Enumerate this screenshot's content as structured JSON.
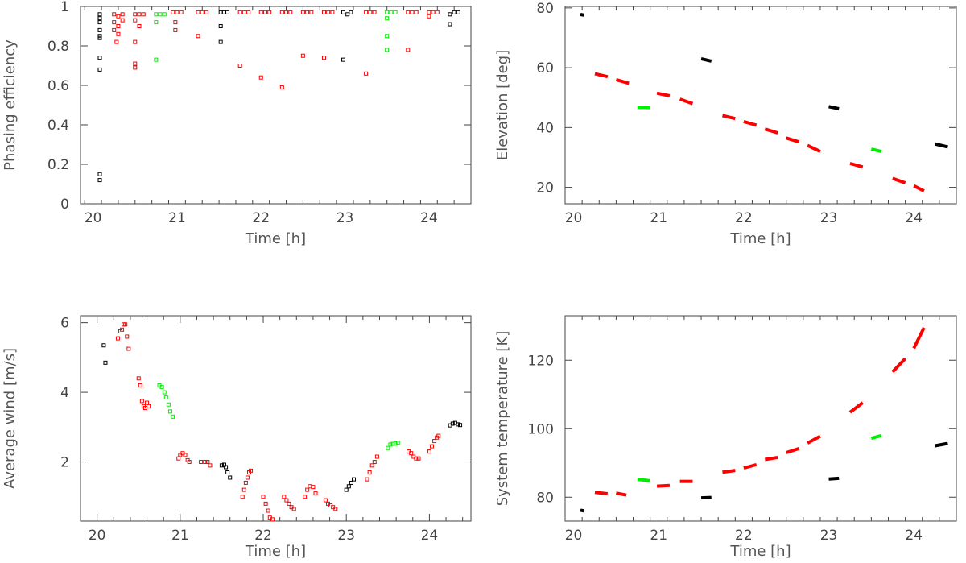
{
  "colors": {
    "red": "#ff0000",
    "green": "#00ee00",
    "black": "#000000",
    "frame": "#444444"
  },
  "chart_data": [
    {
      "type": "scatter",
      "title": "",
      "xlabel": "Time [h]",
      "ylabel": "Phasing efficiency",
      "xlim": [
        19.85,
        24.5
      ],
      "ylim": [
        0,
        1
      ],
      "xticks": [
        20,
        21,
        22,
        23,
        24
      ],
      "yticks": [
        0,
        0.2,
        0.4,
        0.6,
        0.8,
        1
      ],
      "ytick_labels": [
        "0",
        "0.2",
        "0.4",
        "0.6",
        "0.8",
        "1"
      ],
      "marker": "open-square",
      "series": [
        {
          "color": "black",
          "points": [
            [
              20.08,
              0.96
            ],
            [
              20.08,
              0.94
            ],
            [
              20.08,
              0.92
            ],
            [
              20.08,
              0.88
            ],
            [
              20.08,
              0.85
            ],
            [
              20.08,
              0.84
            ],
            [
              20.08,
              0.74
            ],
            [
              20.08,
              0.68
            ],
            [
              20.08,
              0.15
            ],
            [
              20.08,
              0.12
            ],
            [
              21.52,
              0.97
            ],
            [
              21.56,
              0.97
            ],
            [
              21.6,
              0.97
            ],
            [
              21.52,
              0.9
            ],
            [
              21.52,
              0.82
            ],
            [
              22.98,
              0.97
            ],
            [
              23.03,
              0.96
            ],
            [
              23.07,
              0.97
            ],
            [
              22.98,
              0.73
            ],
            [
              24.25,
              0.96
            ],
            [
              24.3,
              0.97
            ],
            [
              24.35,
              0.97
            ],
            [
              24.25,
              0.91
            ]
          ]
        },
        {
          "color": "green",
          "points": [
            [
              20.75,
              0.96
            ],
            [
              20.8,
              0.96
            ],
            [
              20.85,
              0.96
            ],
            [
              20.75,
              0.92
            ],
            [
              20.75,
              0.73
            ],
            [
              23.5,
              0.97
            ],
            [
              23.55,
              0.97
            ],
            [
              23.6,
              0.97
            ],
            [
              23.5,
              0.94
            ],
            [
              23.5,
              0.85
            ],
            [
              23.5,
              0.78
            ]
          ]
        },
        {
          "color": "red",
          "points": [
            [
              20.25,
              0.96
            ],
            [
              20.3,
              0.95
            ],
            [
              20.35,
              0.96
            ],
            [
              20.25,
              0.92
            ],
            [
              20.3,
              0.9
            ],
            [
              20.25,
              0.88
            ],
            [
              20.3,
              0.86
            ],
            [
              20.28,
              0.82
            ],
            [
              20.35,
              0.93
            ],
            [
              20.5,
              0.96
            ],
            [
              20.55,
              0.96
            ],
            [
              20.6,
              0.96
            ],
            [
              20.5,
              0.93
            ],
            [
              20.55,
              0.9
            ],
            [
              20.5,
              0.82
            ],
            [
              20.5,
              0.71
            ],
            [
              20.5,
              0.69
            ],
            [
              20.95,
              0.97
            ],
            [
              21.0,
              0.97
            ],
            [
              21.05,
              0.97
            ],
            [
              20.98,
              0.92
            ],
            [
              20.98,
              0.88
            ],
            [
              21.25,
              0.97
            ],
            [
              21.3,
              0.97
            ],
            [
              21.35,
              0.97
            ],
            [
              21.25,
              0.85
            ],
            [
              21.75,
              0.97
            ],
            [
              21.8,
              0.97
            ],
            [
              21.85,
              0.97
            ],
            [
              21.75,
              0.7
            ],
            [
              22.0,
              0.97
            ],
            [
              22.05,
              0.97
            ],
            [
              22.1,
              0.97
            ],
            [
              22.0,
              0.64
            ],
            [
              22.25,
              0.97
            ],
            [
              22.3,
              0.97
            ],
            [
              22.35,
              0.97
            ],
            [
              22.25,
              0.59
            ],
            [
              22.5,
              0.97
            ],
            [
              22.55,
              0.97
            ],
            [
              22.6,
              0.97
            ],
            [
              22.5,
              0.75
            ],
            [
              22.75,
              0.97
            ],
            [
              22.8,
              0.97
            ],
            [
              22.85,
              0.97
            ],
            [
              22.75,
              0.74
            ],
            [
              23.25,
              0.97
            ],
            [
              23.3,
              0.97
            ],
            [
              23.35,
              0.97
            ],
            [
              23.25,
              0.66
            ],
            [
              23.75,
              0.97
            ],
            [
              23.8,
              0.97
            ],
            [
              23.85,
              0.97
            ],
            [
              23.75,
              0.78
            ],
            [
              24.0,
              0.97
            ],
            [
              24.05,
              0.97
            ],
            [
              24.1,
              0.97
            ],
            [
              24.0,
              0.95
            ]
          ]
        }
      ]
    },
    {
      "type": "scatter",
      "title": "",
      "xlabel": "Time [h]",
      "ylabel": "Elevation [deg]",
      "xlim": [
        19.9,
        24.5
      ],
      "ylim": [
        14.5,
        80.5
      ],
      "xticks": [
        20,
        21,
        22,
        23,
        24
      ],
      "yticks": [
        20,
        40,
        60,
        80
      ],
      "ytick_labels": [
        "20",
        "40",
        "60",
        "80"
      ],
      "marker": "dash",
      "series": [
        {
          "color": "black",
          "segments": [
            [
              20.08,
              77.8,
              20.12,
              77.6
            ],
            [
              21.5,
              63.0,
              21.62,
              62.2
            ],
            [
              23.0,
              47.0,
              23.12,
              46.3
            ],
            [
              24.25,
              34.5,
              24.4,
              33.5
            ]
          ]
        },
        {
          "color": "green",
          "segments": [
            [
              20.75,
              46.8,
              20.9,
              46.7
            ],
            [
              23.5,
              32.8,
              23.62,
              32.0
            ]
          ]
        },
        {
          "color": "red",
          "segments": [
            [
              20.25,
              58.0,
              20.4,
              57.0
            ],
            [
              20.5,
              56.0,
              20.65,
              54.8
            ],
            [
              20.98,
              51.5,
              21.13,
              50.6
            ],
            [
              21.25,
              49.5,
              21.4,
              48.0
            ],
            [
              21.75,
              44.0,
              21.9,
              43.0
            ],
            [
              22.0,
              42.0,
              22.15,
              40.8
            ],
            [
              22.25,
              39.5,
              22.4,
              38.2
            ],
            [
              22.5,
              36.5,
              22.65,
              35.2
            ],
            [
              22.75,
              34.0,
              22.9,
              32.0
            ],
            [
              23.25,
              28.0,
              23.4,
              26.8
            ],
            [
              23.75,
              23.0,
              23.9,
              21.5
            ],
            [
              24.0,
              20.5,
              24.12,
              18.8
            ]
          ]
        }
      ]
    },
    {
      "type": "scatter",
      "title": "",
      "xlabel": "Time [h]",
      "ylabel": "Average wind [m/s]",
      "xlim": [
        19.8,
        24.5
      ],
      "ylim": [
        0.3,
        6.2
      ],
      "xticks": [
        20,
        21,
        22,
        23,
        24
      ],
      "yticks": [
        2,
        4,
        6
      ],
      "ytick_labels": [
        "2",
        "4",
        "6"
      ],
      "marker": "open-square",
      "series": [
        {
          "color": "black",
          "points": [
            [
              20.08,
              5.35
            ],
            [
              20.1,
              4.85
            ],
            [
              21.5,
              1.9
            ],
            [
              21.53,
              1.92
            ],
            [
              21.55,
              1.85
            ],
            [
              21.57,
              1.7
            ],
            [
              21.6,
              1.55
            ],
            [
              23.0,
              1.2
            ],
            [
              23.03,
              1.3
            ],
            [
              23.06,
              1.4
            ],
            [
              23.09,
              1.5
            ],
            [
              24.25,
              3.05
            ],
            [
              24.28,
              3.1
            ],
            [
              24.31,
              3.12
            ],
            [
              24.34,
              3.08
            ],
            [
              24.37,
              3.06
            ]
          ]
        },
        {
          "color": "green",
          "points": [
            [
              20.75,
              4.2
            ],
            [
              20.78,
              4.15
            ],
            [
              20.81,
              4.0
            ],
            [
              20.83,
              3.85
            ],
            [
              20.86,
              3.65
            ],
            [
              20.88,
              3.45
            ],
            [
              20.91,
              3.3
            ],
            [
              23.5,
              2.4
            ],
            [
              23.53,
              2.5
            ],
            [
              23.56,
              2.52
            ],
            [
              23.59,
              2.53
            ],
            [
              23.62,
              2.55
            ]
          ]
        },
        {
          "color": "red",
          "points": [
            [
              20.25,
              5.55
            ],
            [
              20.28,
              5.75
            ],
            [
              20.3,
              5.8
            ],
            [
              20.32,
              5.95
            ],
            [
              20.34,
              5.95
            ],
            [
              20.36,
              5.6
            ],
            [
              20.38,
              5.25
            ],
            [
              20.5,
              4.4
            ],
            [
              20.52,
              4.2
            ],
            [
              20.54,
              3.75
            ],
            [
              20.56,
              3.6
            ],
            [
              20.58,
              3.55
            ],
            [
              20.6,
              3.7
            ],
            [
              20.62,
              3.6
            ],
            [
              20.98,
              2.1
            ],
            [
              21.0,
              2.2
            ],
            [
              21.03,
              2.25
            ],
            [
              21.06,
              2.2
            ],
            [
              21.09,
              2.05
            ],
            [
              21.11,
              2.0
            ],
            [
              21.25,
              2.0
            ],
            [
              21.3,
              2.0
            ],
            [
              21.33,
              2.0
            ],
            [
              21.36,
              1.9
            ],
            [
              21.75,
              1.0
            ],
            [
              21.77,
              1.2
            ],
            [
              21.79,
              1.4
            ],
            [
              21.81,
              1.55
            ],
            [
              21.83,
              1.7
            ],
            [
              21.85,
              1.75
            ],
            [
              22.0,
              1.0
            ],
            [
              22.03,
              0.8
            ],
            [
              22.06,
              0.6
            ],
            [
              22.08,
              0.4
            ],
            [
              22.11,
              0.35
            ],
            [
              22.25,
              1.0
            ],
            [
              22.28,
              0.9
            ],
            [
              22.31,
              0.8
            ],
            [
              22.34,
              0.7
            ],
            [
              22.37,
              0.65
            ],
            [
              22.5,
              1.0
            ],
            [
              22.53,
              1.2
            ],
            [
              22.56,
              1.3
            ],
            [
              22.6,
              1.28
            ],
            [
              22.63,
              1.1
            ],
            [
              22.75,
              0.9
            ],
            [
              22.78,
              0.8
            ],
            [
              22.81,
              0.75
            ],
            [
              22.84,
              0.7
            ],
            [
              22.87,
              0.65
            ],
            [
              23.25,
              1.5
            ],
            [
              23.28,
              1.7
            ],
            [
              23.31,
              1.9
            ],
            [
              23.34,
              2.0
            ],
            [
              23.37,
              2.15
            ],
            [
              23.75,
              2.3
            ],
            [
              23.78,
              2.25
            ],
            [
              23.81,
              2.15
            ],
            [
              23.84,
              2.1
            ],
            [
              23.87,
              2.1
            ],
            [
              24.0,
              2.3
            ],
            [
              24.03,
              2.45
            ],
            [
              24.06,
              2.6
            ],
            [
              24.09,
              2.7
            ],
            [
              24.11,
              2.75
            ]
          ]
        }
      ]
    },
    {
      "type": "scatter",
      "title": "",
      "xlabel": "Time [h]",
      "ylabel": "System temperature [K]",
      "xlim": [
        19.9,
        24.5
      ],
      "ylim": [
        73,
        133
      ],
      "xticks": [
        20,
        21,
        22,
        23,
        24
      ],
      "yticks": [
        80,
        100,
        120
      ],
      "ytick_labels": [
        "80",
        "100",
        "120"
      ],
      "marker": "dash",
      "series": [
        {
          "color": "black",
          "segments": [
            [
              20.08,
              76.2,
              20.12,
              76.0
            ],
            [
              21.5,
              79.8,
              21.62,
              79.9
            ],
            [
              23.0,
              85.3,
              23.12,
              85.5
            ],
            [
              24.25,
              95.0,
              24.4,
              95.7
            ]
          ]
        },
        {
          "color": "green",
          "segments": [
            [
              20.75,
              85.2,
              20.9,
              84.8
            ],
            [
              23.5,
              97.2,
              23.62,
              98.0
            ]
          ]
        },
        {
          "color": "red",
          "segments": [
            [
              20.25,
              81.4,
              20.4,
              81.0
            ],
            [
              20.5,
              81.2,
              20.62,
              80.6
            ],
            [
              20.98,
              83.2,
              21.13,
              83.4
            ],
            [
              21.25,
              84.6,
              21.4,
              84.6
            ],
            [
              21.75,
              87.3,
              21.9,
              87.8
            ],
            [
              22.0,
              88.5,
              22.15,
              89.5
            ],
            [
              22.25,
              91.0,
              22.4,
              91.6
            ],
            [
              22.5,
              93.0,
              22.65,
              94.2
            ],
            [
              22.75,
              95.8,
              22.9,
              97.8
            ],
            [
              23.25,
              104.8,
              23.4,
              107.6
            ],
            [
              23.75,
              116.6,
              23.9,
              120.5
            ],
            [
              24.0,
              123.5,
              24.12,
              129.5
            ]
          ]
        }
      ]
    }
  ]
}
